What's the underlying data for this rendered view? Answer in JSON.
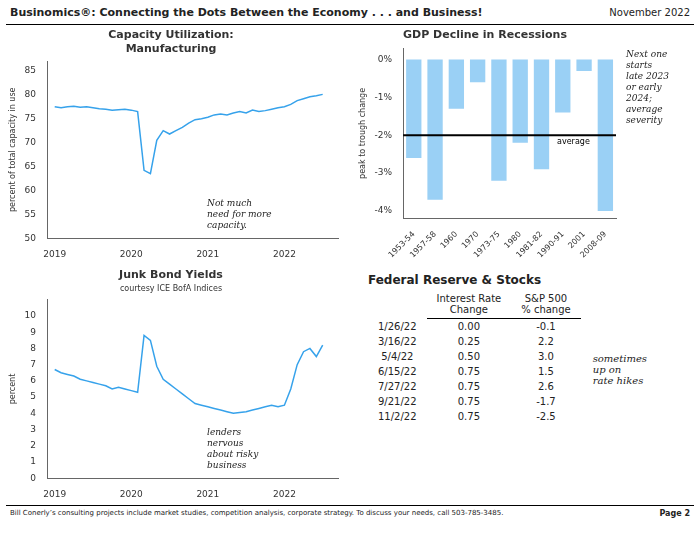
{
  "title": "Businomics®: Connecting the Dots Between the Economy . . . and Business!",
  "subtitle": "November 2022",
  "annotations": [
    "Bill Conerly’s consulting projects include market studies, competition analysis, corporate strategy.  To discuss your needs, call 503-785-3485.",
    "Page 2"
  ],
  "chart_data": [
    {
      "type": "line",
      "title": "Capacity Utilization:\nManufacturing",
      "ylabel": "percent of total capacity in use",
      "annotation": "Not much\nneed for more\ncapacity.",
      "x": [
        2019.0,
        2019.083,
        2019.167,
        2019.25,
        2019.333,
        2019.417,
        2019.5,
        2019.583,
        2019.667,
        2019.75,
        2019.833,
        2019.917,
        2020.0,
        2020.083,
        2020.167,
        2020.25,
        2020.333,
        2020.417,
        2020.5,
        2020.583,
        2020.667,
        2020.75,
        2020.833,
        2020.917,
        2021.0,
        2021.083,
        2021.167,
        2021.25,
        2021.333,
        2021.417,
        2021.5,
        2021.583,
        2021.667,
        2021.75,
        2021.833,
        2021.917,
        2022.0,
        2022.083,
        2022.167,
        2022.25,
        2022.333,
        2022.417,
        2022.5
      ],
      "values": [
        77.5,
        77.3,
        77.5,
        77.6,
        77.4,
        77.5,
        77.3,
        77.1,
        77.0,
        76.8,
        76.9,
        77.0,
        76.8,
        76.5,
        64.2,
        63.5,
        70.5,
        72.5,
        71.8,
        72.5,
        73.2,
        74.1,
        74.8,
        75.0,
        75.3,
        75.8,
        76.0,
        75.8,
        76.2,
        76.5,
        76.2,
        76.8,
        76.5,
        76.7,
        77.0,
        77.3,
        77.5,
        78.0,
        78.8,
        79.2,
        79.6,
        79.8,
        80.1
      ],
      "xlim": [
        2018.9,
        2022.7
      ],
      "xticks": [
        2019,
        2020,
        2021,
        2022
      ],
      "ylim": [
        50,
        87
      ],
      "yticks": [
        50,
        55,
        60,
        65,
        70,
        75,
        80,
        85
      ],
      "grid": false
    },
    {
      "type": "bar",
      "title": "GDP Decline in Recessions",
      "ylabel": "peak to trough change",
      "annotation": "Next one\nstarts\nlate 2023\nor early\n2024;\naverage\nseverity",
      "categories": [
        "1953-54",
        "1957-58",
        "1960",
        "1970",
        "1973-75",
        "1980",
        "1981-82",
        "1990-91",
        "2001",
        "2008-09"
      ],
      "values": [
        -2.6,
        -3.7,
        -1.3,
        -0.6,
        -3.2,
        -2.2,
        -2.9,
        -1.4,
        -0.3,
        -4.0
      ],
      "reference_line": {
        "value": -2.0,
        "label": "average"
      },
      "ylim": [
        -4.2,
        0.3
      ],
      "yticks": [
        {
          "value": 0,
          "label": "0%"
        },
        {
          "value": -1,
          "label": "-1%"
        },
        {
          "value": -2,
          "label": "-2%"
        },
        {
          "value": -3,
          "label": "-3%"
        },
        {
          "value": -4,
          "label": "-4%"
        }
      ],
      "grid": false
    },
    {
      "type": "line",
      "title": "Junk Bond Yields",
      "subtitle": "courtesy ICE BofA Indices",
      "ylabel": "percent",
      "annotation": "lenders\nnervous\nabout risky\nbusiness",
      "x": [
        2019.0,
        2019.083,
        2019.167,
        2019.25,
        2019.333,
        2019.417,
        2019.5,
        2019.583,
        2019.667,
        2019.75,
        2019.833,
        2019.917,
        2020.0,
        2020.083,
        2020.167,
        2020.25,
        2020.333,
        2020.417,
        2020.5,
        2020.583,
        2020.667,
        2020.75,
        2020.833,
        2020.917,
        2021.0,
        2021.083,
        2021.167,
        2021.25,
        2021.333,
        2021.417,
        2021.5,
        2021.583,
        2021.667,
        2021.75,
        2021.833,
        2021.917,
        2022.0,
        2022.083,
        2022.167,
        2022.25,
        2022.333,
        2022.417,
        2022.5
      ],
      "values": [
        6.7,
        6.5,
        6.4,
        6.3,
        6.1,
        6.0,
        5.9,
        5.8,
        5.7,
        5.5,
        5.6,
        5.5,
        5.4,
        5.3,
        8.8,
        8.5,
        6.9,
        6.1,
        5.8,
        5.5,
        5.2,
        4.9,
        4.6,
        4.5,
        4.4,
        4.3,
        4.2,
        4.1,
        4.0,
        4.05,
        4.1,
        4.2,
        4.3,
        4.4,
        4.5,
        4.4,
        4.5,
        5.5,
        7.0,
        7.8,
        8.0,
        7.5,
        8.2
      ],
      "xlim": [
        2018.9,
        2022.7
      ],
      "xticks": [
        2019,
        2020,
        2021,
        2022
      ],
      "ylim": [
        0,
        11
      ],
      "yticks": [
        0,
        1,
        2,
        3,
        4,
        5,
        6,
        7,
        8,
        9,
        10
      ],
      "grid": false
    },
    {
      "type": "table",
      "title": "Federal Reserve & Stocks",
      "annotation": "sometimes\nup on\nrate hikes",
      "categories": [
        "1/26/22",
        "3/16/22",
        "5/4/22",
        "6/15/22",
        "7/27/22",
        "9/21/22",
        "11/2/22"
      ],
      "series": [
        {
          "name": "Interest Rate\nChange",
          "values": [
            0.0,
            0.25,
            0.5,
            0.75,
            0.75,
            0.75,
            0.75
          ],
          "value_labels": [
            "0.00",
            "0.25",
            "0.50",
            "0.75",
            "0.75",
            "0.75",
            "0.75"
          ]
        },
        {
          "name": "S&P 500\n% change",
          "values": [
            -0.1,
            2.2,
            3.0,
            1.5,
            2.6,
            -1.7,
            -2.5
          ],
          "value_labels": [
            "-0.1",
            "2.2",
            "3.0",
            "1.5",
            "2.6",
            "-1.7",
            "-2.5"
          ]
        }
      ]
    }
  ]
}
